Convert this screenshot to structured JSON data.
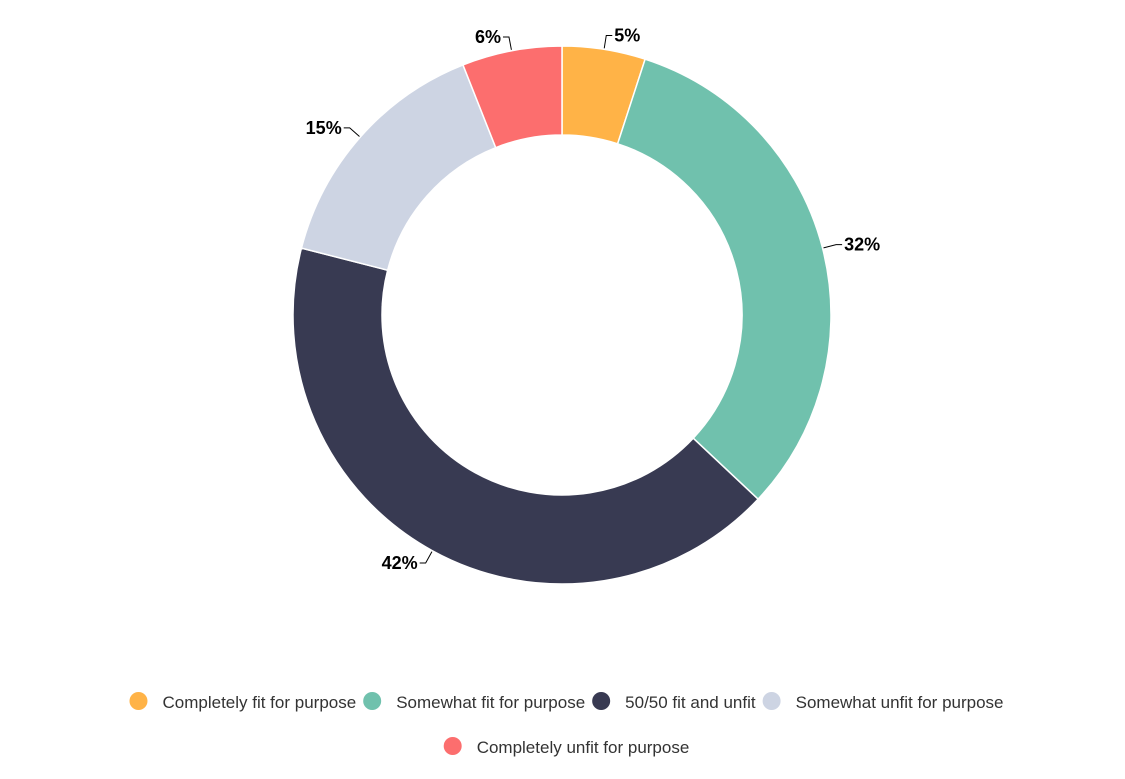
{
  "chart_data": {
    "type": "pie",
    "variant": "donut",
    "title": "",
    "legend_position": "bottom",
    "categories": [
      "Completely fit for purpose",
      "Somewhat fit for purpose",
      "50/50 fit and unfit",
      "Somewhat unfit for purpose",
      "Completely unfit for purpose"
    ],
    "values": [
      5,
      32,
      42,
      15,
      6
    ],
    "labels": [
      "5%",
      "32%",
      "42%",
      "15%",
      "6%"
    ],
    "colors": [
      "#FFB347",
      "#70C1AD",
      "#383A52",
      "#CDD4E3",
      "#FC6E6E"
    ]
  }
}
